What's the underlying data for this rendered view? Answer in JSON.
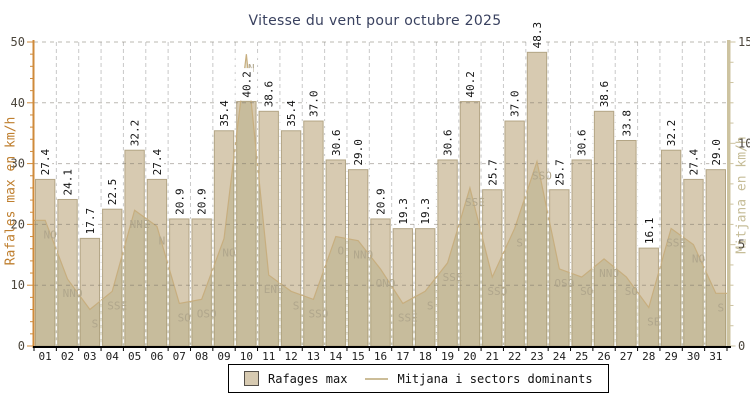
{
  "title": "Vitesse du vent pour octubre 2025",
  "chart_data": {
    "type": "bar",
    "title": "Vitesse du vent pour octubre 2025",
    "categories": [
      "01",
      "02",
      "03",
      "04",
      "05",
      "06",
      "07",
      "08",
      "09",
      "10",
      "11",
      "12",
      "13",
      "14",
      "15",
      "16",
      "17",
      "18",
      "19",
      "20",
      "21",
      "22",
      "23",
      "24",
      "25",
      "26",
      "27",
      "28",
      "29",
      "30",
      "31"
    ],
    "series": [
      {
        "name": "Rafages max",
        "type": "bar",
        "axis": "left",
        "unit": "km/h",
        "values": [
          27.4,
          24.1,
          17.7,
          22.5,
          32.2,
          27.4,
          20.9,
          20.9,
          35.4,
          40.2,
          38.6,
          35.4,
          37.0,
          30.6,
          29.0,
          20.9,
          19.3,
          19.3,
          30.6,
          40.2,
          25.7,
          37.0,
          48.3,
          25.7,
          30.6,
          38.6,
          33.8,
          16.1,
          32.2,
          27.4,
          29.0
        ]
      },
      {
        "name": "Mitjana i sectors dominants",
        "type": "area",
        "axis": "right",
        "unit": "km/h",
        "values": [
          6.2,
          3.3,
          1.8,
          2.7,
          6.7,
          5.9,
          2.1,
          2.3,
          5.3,
          14.4,
          3.5,
          2.7,
          2.3,
          5.4,
          5.2,
          3.8,
          2.1,
          2.7,
          4.1,
          7.8,
          3.4,
          5.8,
          9.1,
          3.8,
          3.4,
          4.3,
          3.4,
          1.9,
          5.8,
          5.0,
          2.6
        ],
        "directions": [
          "NO",
          "NNO",
          "S",
          "SSE",
          "NNE",
          "N",
          "SO",
          "OSO",
          "NO",
          "N",
          "ENE",
          "S",
          "SSO",
          "O",
          "NNO",
          "ONO",
          "SSE",
          "S",
          "SSE",
          "SSE",
          "SSO",
          "S",
          "SSO",
          "OSO",
          "SO",
          "NNO",
          "SO",
          "SE",
          "SSE",
          "NO",
          "S"
        ]
      }
    ],
    "left_axis": {
      "label": "Rafales max en km/h",
      "min": 0,
      "max": 50,
      "ticks": [
        0,
        10,
        20,
        30,
        40,
        50
      ],
      "minor_step": 2,
      "color": "#cf8a3a",
      "text_color": "#4c463c"
    },
    "right_axis": {
      "label": "Mitjana en km/h",
      "min": 0,
      "max": 15,
      "ticks": [
        0,
        5,
        10,
        15
      ],
      "minor_step": 1,
      "color": "#cdc3a0",
      "text_color": "#4c463c"
    },
    "legend": {
      "items": [
        {
          "label": "Rafages max",
          "swatch": "bar"
        },
        {
          "label": "Mitjana i sectors dominants",
          "swatch": "line"
        }
      ]
    },
    "colors": {
      "title": "#39415f",
      "bar_fill": "#d7cab1",
      "bar_border": "#b3a585",
      "area_fill": "rgba(170,162,118,0.34)",
      "area_line": "#c7ae7f",
      "grid_h": "rgba(120,114,102,0.5)",
      "grid_v": "#c9c9c9",
      "grid_v_over_bars": "rgba(255,255,255,0.9)",
      "value_label": "#111111",
      "direction_label": "#b0a68c",
      "day_label": "#1d1d1d",
      "bottom_axis": "#000000"
    },
    "grid": true,
    "legend_position": "bottom"
  }
}
